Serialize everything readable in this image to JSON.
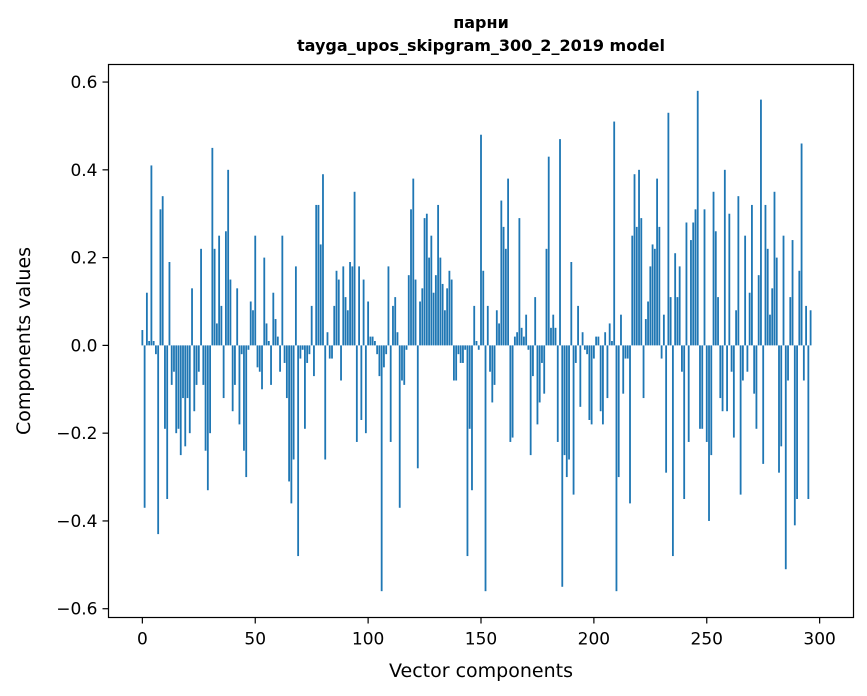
{
  "chart_data": {
    "type": "bar",
    "title_line1": "парни",
    "title_line2": "tayga_upos_skipgram_300_2_2019 model",
    "xlabel": "Vector components",
    "ylabel": "Components values",
    "xlim": [
      -15,
      315
    ],
    "ylim": [
      -0.62,
      0.64
    ],
    "xticks": [
      0,
      50,
      100,
      150,
      200,
      250,
      300
    ],
    "xtick_labels": [
      "0",
      "50",
      "100",
      "150",
      "200",
      "250",
      "300"
    ],
    "yticks": [
      -0.6,
      -0.4,
      -0.2,
      0.0,
      0.2,
      0.4,
      0.6
    ],
    "ytick_labels": [
      "−0.6",
      "−0.4",
      "−0.2",
      "0.0",
      "0.2",
      "0.4",
      "0.6"
    ],
    "bar_color": "#1f77b4",
    "values": [
      0.035,
      -0.37,
      0.12,
      0.01,
      0.41,
      0.01,
      -0.02,
      -0.43,
      0.31,
      0.34,
      -0.19,
      -0.35,
      0.19,
      -0.09,
      -0.06,
      -0.2,
      -0.19,
      -0.25,
      -0.12,
      -0.23,
      -0.12,
      -0.2,
      0.13,
      -0.15,
      -0.09,
      -0.06,
      0.22,
      -0.09,
      -0.24,
      -0.33,
      -0.2,
      0.45,
      0.22,
      0.05,
      0.25,
      0.09,
      -0.12,
      0.26,
      0.4,
      0.15,
      -0.15,
      -0.09,
      0.13,
      -0.18,
      -0.02,
      -0.24,
      -0.3,
      -0.01,
      0.1,
      0.08,
      0.25,
      -0.05,
      -0.06,
      -0.1,
      0.2,
      0.05,
      0.01,
      -0.09,
      0.12,
      0.06,
      0.02,
      -0.06,
      0.25,
      -0.04,
      -0.12,
      -0.31,
      -0.36,
      -0.26,
      0.18,
      -0.48,
      -0.03,
      -0.01,
      -0.19,
      -0.04,
      -0.02,
      0.09,
      -0.07,
      0.32,
      0.32,
      0.23,
      0.39,
      -0.26,
      0.03,
      -0.03,
      -0.03,
      0.09,
      0.17,
      0.15,
      -0.08,
      0.18,
      0.11,
      0.08,
      0.19,
      0.18,
      0.35,
      -0.22,
      0.18,
      -0.17,
      0.15,
      -0.2,
      0.1,
      0.02,
      0.02,
      0.01,
      -0.02,
      -0.07,
      -0.56,
      -0.05,
      -0.02,
      0.18,
      -0.22,
      0.09,
      0.11,
      0.03,
      -0.37,
      -0.08,
      -0.09,
      -0.01,
      0.16,
      0.31,
      0.38,
      0.15,
      -0.28,
      0.1,
      0.13,
      0.29,
      0.3,
      0.2,
      0.25,
      0.12,
      0.16,
      0.32,
      0.2,
      0.14,
      0.08,
      0.13,
      0.17,
      0.15,
      -0.08,
      -0.08,
      -0.02,
      -0.04,
      -0.04,
      -0.01,
      -0.48,
      -0.19,
      -0.33,
      0.09,
      0.01,
      -0.01,
      0.48,
      0.17,
      -0.56,
      0.09,
      -0.06,
      -0.13,
      -0.09,
      0.08,
      0.05,
      0.33,
      0.27,
      0.22,
      0.38,
      -0.22,
      -0.21,
      0.02,
      0.03,
      0.29,
      0.04,
      0.02,
      0.07,
      -0.01,
      -0.25,
      -0.07,
      0.11,
      -0.18,
      -0.13,
      -0.04,
      -0.11,
      0.22,
      0.43,
      0.04,
      0.07,
      0.04,
      -0.22,
      0.47,
      -0.55,
      -0.25,
      -0.3,
      -0.26,
      0.19,
      -0.34,
      -0.04,
      0.09,
      -0.14,
      0.03,
      -0.01,
      -0.02,
      -0.17,
      -0.18,
      -0.03,
      0.02,
      0.02,
      -0.15,
      -0.18,
      0.03,
      -0.12,
      0.05,
      0.01,
      0.51,
      -0.56,
      -0.3,
      0.07,
      -0.11,
      -0.03,
      -0.03,
      -0.36,
      0.25,
      0.39,
      0.27,
      0.4,
      0.29,
      -0.12,
      0.06,
      0.1,
      0.18,
      0.23,
      0.22,
      0.38,
      0.27,
      -0.03,
      0.07,
      -0.29,
      0.53,
      0.11,
      -0.48,
      0.21,
      0.11,
      0.18,
      -0.06,
      -0.35,
      0.28,
      -0.22,
      0.24,
      0.28,
      0.31,
      0.58,
      -0.19,
      -0.19,
      0.31,
      -0.22,
      -0.4,
      -0.25,
      0.35,
      0.26,
      0.11,
      -0.12,
      -0.15,
      0.4,
      -0.15,
      0.3,
      -0.06,
      -0.21,
      0.08,
      0.34,
      -0.34,
      -0.08,
      0.25,
      -0.06,
      0.12,
      0.32,
      -0.11,
      -0.19,
      0.16,
      0.56,
      -0.27,
      0.32,
      0.22,
      0.07,
      0.13,
      0.35,
      0.2,
      -0.29,
      -0.23,
      0.25,
      -0.51,
      -0.08,
      0.11,
      0.24,
      -0.41,
      -0.35,
      0.17,
      0.46,
      -0.08,
      0.09,
      -0.35,
      0.08
    ]
  }
}
